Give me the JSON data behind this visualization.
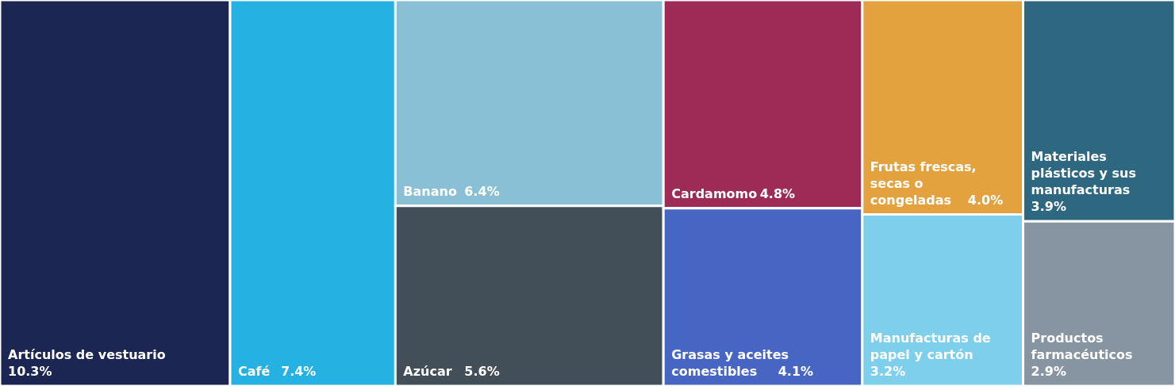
{
  "chart_data": {
    "type": "other",
    "categories": [
      "Artículos de vestuario",
      "Café",
      "Banano",
      "Azúcar",
      "Cardamomo",
      "Grasas y aceites comestibles",
      "Frutas frescas, secas o congeladas",
      "Manufacturas de papel y cartón",
      "Materiales plásticos y sus manufacturas",
      "Productos farmacéuticos"
    ],
    "values": [
      10.3,
      7.4,
      6.4,
      5.6,
      4.8,
      4.1,
      4.0,
      3.2,
      3.9,
      2.9
    ],
    "value_labels": [
      "10.3%",
      "7.4%",
      "6.4%",
      "5.6%",
      "4.8%",
      "4.1%",
      "4.0%",
      "3.2%",
      "3.9%",
      "2.9%"
    ],
    "colors": [
      "#1b2653",
      "#25b1e1",
      "#89c0d5",
      "#434f58",
      "#9e2b55",
      "#4766c4",
      "#e4a23f",
      "#7dcfec",
      "#2e6780",
      "#8795a2"
    ]
  }
}
